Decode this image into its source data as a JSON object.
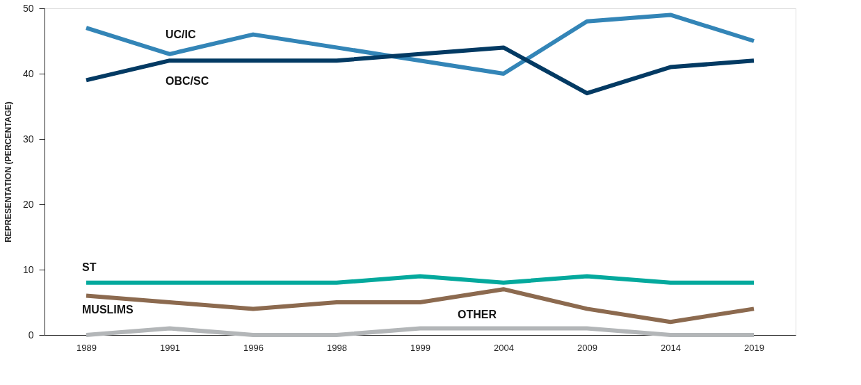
{
  "chart_data": {
    "type": "line",
    "ylabel": "REPRESENTATION (PERCENTAGE)",
    "categories": [
      "1989",
      "1991",
      "1996",
      "1998",
      "1999",
      "2004",
      "2009",
      "2014",
      "2019"
    ],
    "series": [
      {
        "name": "UC/IC",
        "color": "#3385b7",
        "values": [
          47,
          43,
          46,
          44,
          42,
          40,
          48,
          49,
          45
        ]
      },
      {
        "name": "OBC/SC",
        "color": "#033a63",
        "values": [
          39,
          42,
          42,
          42,
          43,
          44,
          37,
          41,
          42
        ]
      },
      {
        "name": "ST",
        "color": "#04a99d",
        "values": [
          8,
          8,
          8,
          8,
          9,
          8,
          9,
          8,
          8
        ]
      },
      {
        "name": "MUSLIMS",
        "color": "#8c6a4f",
        "values": [
          6,
          5,
          4,
          5,
          5,
          7,
          4,
          2,
          4
        ]
      },
      {
        "name": "OTHER",
        "color": "#b3b6b8",
        "values": [
          0,
          1,
          0,
          0,
          1,
          1,
          1,
          0,
          0
        ]
      }
    ],
    "ylim": [
      0,
      50
    ],
    "yticks": [
      0,
      10,
      20,
      30,
      40,
      50
    ],
    "grid": false,
    "legend": false,
    "marker": "none",
    "line_style": "solid"
  }
}
